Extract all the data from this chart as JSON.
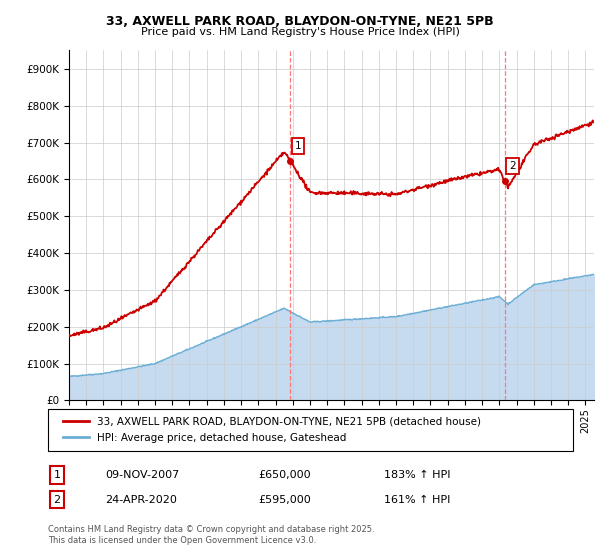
{
  "title1": "33, AXWELL PARK ROAD, BLAYDON-ON-TYNE, NE21 5PB",
  "title2": "Price paid vs. HM Land Registry's House Price Index (HPI)",
  "ylim": [
    0,
    950000
  ],
  "yticks": [
    0,
    100000,
    200000,
    300000,
    400000,
    500000,
    600000,
    700000,
    800000,
    900000
  ],
  "ytick_labels": [
    "£0",
    "£100K",
    "£200K",
    "£300K",
    "£400K",
    "£500K",
    "£600K",
    "£700K",
    "£800K",
    "£900K"
  ],
  "sale1_date": 2007.86,
  "sale1_price": 650000,
  "sale2_date": 2020.31,
  "sale2_price": 595000,
  "hpi_color": "#6baed6",
  "hpi_fill_color": "#c6dbef",
  "price_color": "#cc0000",
  "vline_color": "#ff7777",
  "legend_line1": "33, AXWELL PARK ROAD, BLAYDON-ON-TYNE, NE21 5PB (detached house)",
  "legend_line2": "HPI: Average price, detached house, Gateshead",
  "table_row1": [
    "1",
    "09-NOV-2007",
    "£650,000",
    "183% ↑ HPI"
  ],
  "table_row2": [
    "2",
    "24-APR-2020",
    "£595,000",
    "161% ↑ HPI"
  ],
  "footer": "Contains HM Land Registry data © Crown copyright and database right 2025.\nThis data is licensed under the Open Government Licence v3.0.",
  "xmin": 1995,
  "xmax": 2025.5
}
